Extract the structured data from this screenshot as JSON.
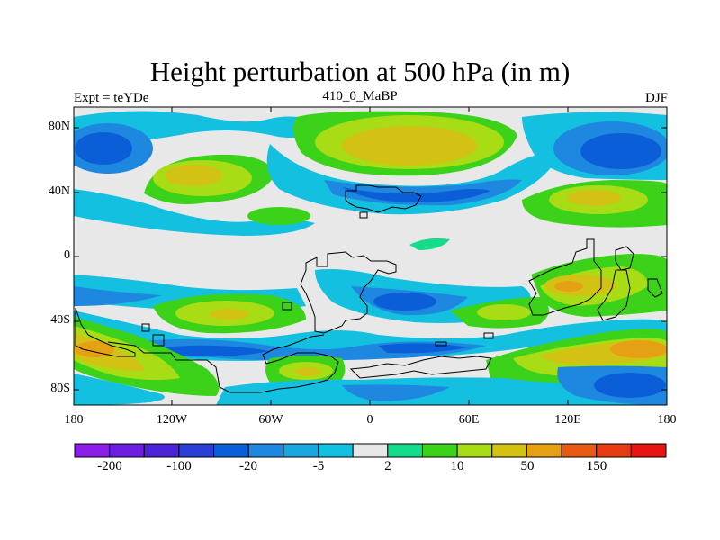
{
  "title": "Height perturbation at 500 hPa (in m)",
  "left_label": "Expt = teYDe",
  "center_label": "410_0_MaBP",
  "right_label": "DJF",
  "map": {
    "lon_range": [
      -180,
      180
    ],
    "lat_range": [
      -90,
      90
    ],
    "lat_ticks": [
      {
        "value": 80,
        "label": "80N"
      },
      {
        "value": 40,
        "label": "40N"
      },
      {
        "value": 0,
        "label": "0"
      },
      {
        "value": -40,
        "label": "40S"
      },
      {
        "value": -80,
        "label": "80S"
      }
    ],
    "lon_ticks": [
      {
        "value": -180,
        "label": "180"
      },
      {
        "value": -120,
        "label": "120W"
      },
      {
        "value": -60,
        "label": "60W"
      },
      {
        "value": 0,
        "label": "0"
      },
      {
        "value": 60,
        "label": "60E"
      },
      {
        "value": 120,
        "label": "120E"
      },
      {
        "value": 180,
        "label": "180"
      }
    ]
  },
  "colorbar": {
    "colors": [
      "#8b1ee6",
      "#6a1fe0",
      "#4b24d8",
      "#2a3fd6",
      "#0a5fd8",
      "#1e88e0",
      "#1aa6de",
      "#14c0e0",
      "#e8e8e8",
      "#14dc8c",
      "#3cd21a",
      "#a8dc14",
      "#d2c214",
      "#e6a014",
      "#e65a14",
      "#e63a14",
      "#e61414"
    ],
    "tick_labels": [
      "-200",
      "-100",
      "-20",
      "-5",
      "2",
      "10",
      "50",
      "150"
    ]
  },
  "legend_levels_note": "shaded"
}
